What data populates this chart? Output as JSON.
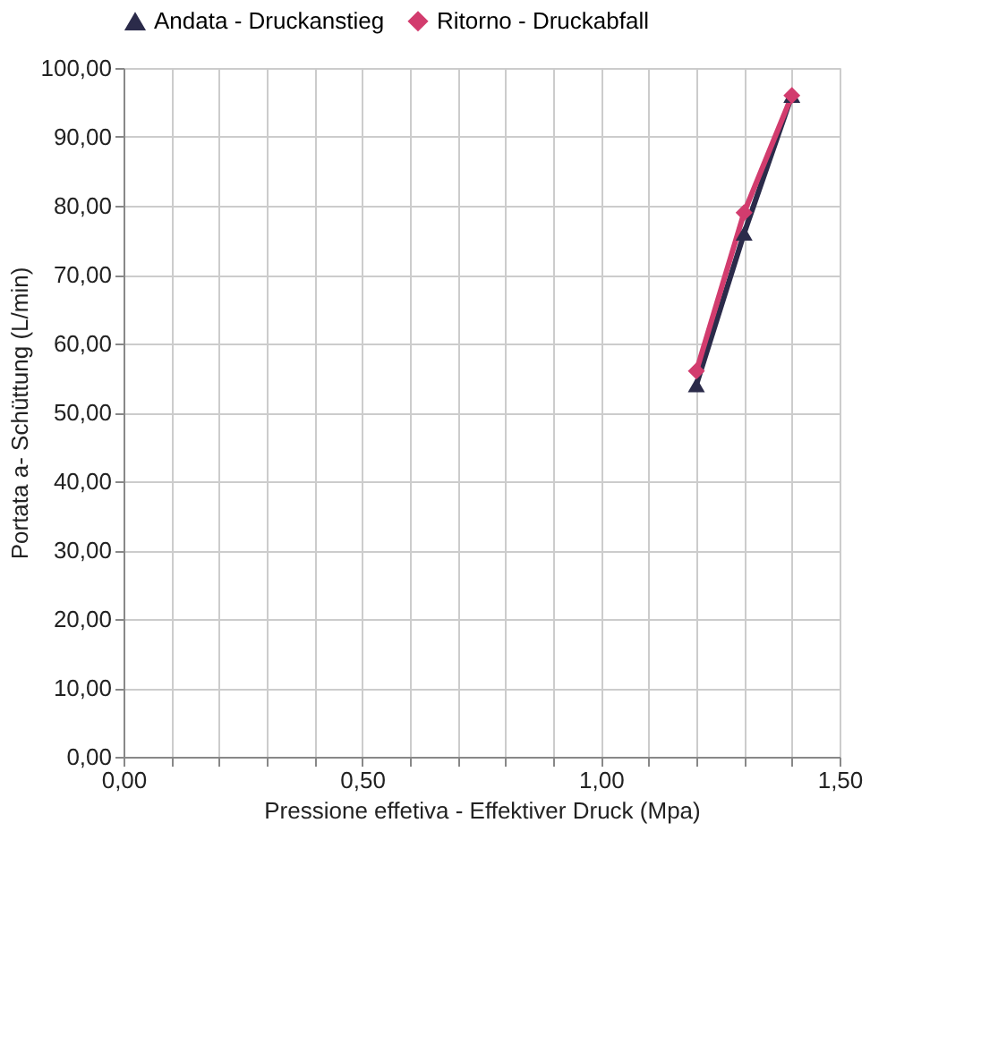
{
  "chart_data": {
    "type": "line",
    "xlabel": "Pressione effetiva - Effektiver Druck (Mpa)",
    "ylabel": "Portata a- Schüttung (L/min)",
    "legend": "top",
    "grid": true,
    "line_style": "solid",
    "xlim": [
      0,
      1.5
    ],
    "ylim": [
      0,
      100
    ],
    "xticks": [
      {
        "value": 0,
        "label": "0,00"
      },
      {
        "value": 0.1,
        "label": null
      },
      {
        "value": 0.2,
        "label": null
      },
      {
        "value": 0.3,
        "label": null
      },
      {
        "value": 0.4,
        "label": null
      },
      {
        "value": 0.5,
        "label": "0,50"
      },
      {
        "value": 0.6,
        "label": null
      },
      {
        "value": 0.7,
        "label": null
      },
      {
        "value": 0.8,
        "label": null
      },
      {
        "value": 0.9,
        "label": null
      },
      {
        "value": 1,
        "label": "1,00"
      },
      {
        "value": 1.1,
        "label": null
      },
      {
        "value": 1.2,
        "label": null
      },
      {
        "value": 1.3,
        "label": null
      },
      {
        "value": 1.4,
        "label": null
      },
      {
        "value": 1.5,
        "label": "1,50"
      }
    ],
    "yticks": [
      {
        "value": 0,
        "label": "0,00"
      },
      {
        "value": 10,
        "label": "10,00"
      },
      {
        "value": 20,
        "label": "20,00"
      },
      {
        "value": 30,
        "label": "30,00"
      },
      {
        "value": 40,
        "label": "40,00"
      },
      {
        "value": 50,
        "label": "50,00"
      },
      {
        "value": 60,
        "label": "60,00"
      },
      {
        "value": 70,
        "label": "70,00"
      },
      {
        "value": 80,
        "label": "80,00"
      },
      {
        "value": 90,
        "label": "90,00"
      },
      {
        "value": 100,
        "label": "100,00"
      }
    ],
    "series": [
      {
        "name": "Andata - Druckanstieg",
        "color": "#2b2b4a",
        "marker": "triangle",
        "x": [
          1.2,
          1.3,
          1.4
        ],
        "values": [
          54,
          76,
          96
        ]
      },
      {
        "name": "Ritorno - Druckabfall",
        "color": "#d23c6e",
        "marker": "diamond",
        "x": [
          1.2,
          1.3,
          1.4
        ],
        "values": [
          56,
          79,
          96
        ]
      }
    ]
  }
}
